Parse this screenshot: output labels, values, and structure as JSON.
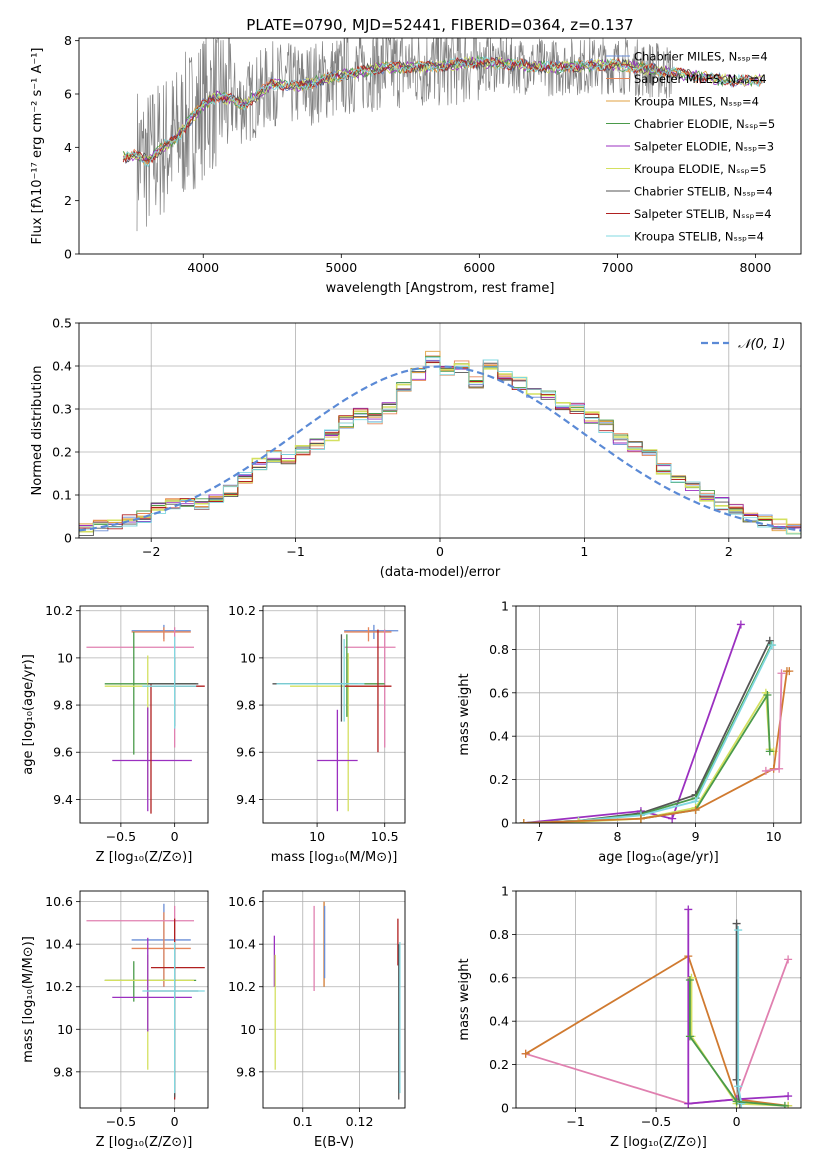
{
  "figure": {
    "title": "PLATE=0790, MJD=52441, FIBERID=0364, z=0.137"
  },
  "colors": {
    "chabrier_miles": "#6a8ed6",
    "salpeter_miles": "#e6865a",
    "kroupa_miles": "#e0a040",
    "chabrier_elodie": "#4a9a4a",
    "salpeter_elodie": "#9b30c0",
    "kroupa_elodie": "#d4e060",
    "chabrier_stelib": "#555555",
    "salpeter_stelib": "#b02020",
    "kroupa_stelib": "#80d8e0",
    "pink": "#e080b0",
    "orange": "#d07a30",
    "normal": "#5b8ad6",
    "grey_spectrum": "#808080"
  },
  "chart_data": [
    {
      "id": "spectrum",
      "type": "line",
      "xlabel": "wavelength [Angstrom, rest frame]",
      "ylabel": "Flux [fλ10⁻¹⁷ erg cm⁻² s⁻¹ A⁻¹]",
      "xlim": [
        3100,
        8330
      ],
      "ylim": [
        0,
        8.1
      ],
      "xticks": [
        4000,
        5000,
        6000,
        7000,
        8000
      ],
      "yticks": [
        0,
        2,
        4,
        6,
        8
      ],
      "grid": false,
      "legend_position": "right",
      "legend": [
        "Chabrier MILES, N_SSP=4",
        "Salpeter MILES, N_SSP=4",
        "Kroupa MILES, N_SSP=4",
        "Chabrier ELODIE, N_SSP=5",
        "Salpeter ELODIE, N_SSP=3",
        "Kroupa ELODIE, N_SSP=5",
        "Chabrier STELIB, N_SSP=4",
        "Salpeter STELIB, N_SSP=4",
        "Kroupa STELIB, N_SSP=4"
      ],
      "model_continuum": {
        "x": [
          3400,
          3500,
          3600,
          3700,
          3800,
          3900,
          4000,
          4100,
          4200,
          4300,
          4500,
          4700,
          5000,
          5300,
          5600,
          6000,
          6500,
          7000,
          7400,
          7800,
          8000
        ],
        "y": [
          3.6,
          3.7,
          3.5,
          4.0,
          4.3,
          5.0,
          5.6,
          5.9,
          5.8,
          5.6,
          6.4,
          6.3,
          6.7,
          7.0,
          7.0,
          7.2,
          7.0,
          7.1,
          6.8,
          6.5,
          6.5
        ]
      }
    },
    {
      "id": "residuals",
      "type": "line",
      "xlabel": "(data-model)/error",
      "ylabel": "Normed distribution",
      "xlim": [
        -2.5,
        2.5
      ],
      "ylim": [
        0,
        0.5
      ],
      "xticks": [
        -2,
        -1,
        0,
        1,
        2
      ],
      "yticks": [
        0.0,
        0.1,
        0.2,
        0.3,
        0.4,
        0.5
      ],
      "grid": true,
      "legend_position": "top-right",
      "legend": [
        "𝒩(0, 1)"
      ],
      "bin_width": 0.1,
      "hist_start": -2.5,
      "hist": [
        0.02,
        0.03,
        0.03,
        0.04,
        0.05,
        0.07,
        0.08,
        0.08,
        0.08,
        0.09,
        0.11,
        0.14,
        0.17,
        0.19,
        0.18,
        0.2,
        0.22,
        0.24,
        0.27,
        0.29,
        0.28,
        0.3,
        0.35,
        0.38,
        0.42,
        0.39,
        0.4,
        0.36,
        0.4,
        0.38,
        0.36,
        0.34,
        0.33,
        0.31,
        0.3,
        0.28,
        0.26,
        0.23,
        0.21,
        0.19,
        0.16,
        0.14,
        0.12,
        0.1,
        0.08,
        0.07,
        0.05,
        0.04,
        0.03,
        0.02
      ]
    },
    {
      "id": "age_vs_Z",
      "type": "scatter",
      "xlabel": "Z [log₁₀(Z/Z⊙)]",
      "ylabel": "age  [log₁₀(age/yr)]",
      "xlim": [
        -0.88,
        0.31
      ],
      "ylim": [
        9.3,
        10.22
      ],
      "xticks": [
        -0.5,
        0.0
      ],
      "yticks": [
        9.4,
        9.6,
        9.8,
        10.0,
        10.2
      ],
      "grid": true,
      "errorbars": [
        {
          "x": -0.1,
          "y": 10.115,
          "xlo": -0.4,
          "xhi": 0.15,
          "ylo": 10.08,
          "yhi": 10.14,
          "c": "chabrier_miles"
        },
        {
          "x": -0.1,
          "y": 10.11,
          "xlo": -0.4,
          "xhi": 0.15,
          "ylo": 10.07,
          "yhi": 10.13,
          "c": "salpeter_miles"
        },
        {
          "x": 0.0,
          "y": 10.045,
          "xlo": -0.82,
          "xhi": 0.18,
          "ylo": 9.62,
          "yhi": 10.13,
          "c": "pink"
        },
        {
          "x": -0.38,
          "y": 9.89,
          "xlo": -0.65,
          "xhi": 0.2,
          "ylo": 9.59,
          "yhi": 10.11,
          "c": "chabrier_elodie"
        },
        {
          "x": -0.25,
          "y": 9.88,
          "xlo": -0.65,
          "xhi": 0.18,
          "ylo": 9.41,
          "yhi": 10.01,
          "c": "kroupa_elodie"
        },
        {
          "x": -0.25,
          "y": 9.565,
          "xlo": -0.58,
          "xhi": 0.16,
          "ylo": 9.35,
          "yhi": 9.79,
          "c": "salpeter_elodie"
        },
        {
          "x": -0.22,
          "y": 9.88,
          "xlo": -0.22,
          "xhi": 0.28,
          "ylo": 9.34,
          "yhi": 9.89,
          "c": "salpeter_stelib"
        },
        {
          "x": 0.0,
          "y": 9.89,
          "xlo": -0.25,
          "xhi": 0.22,
          "ylo": 9.71,
          "yhi": 10.0,
          "c": "chabrier_stelib"
        },
        {
          "x": 0.0,
          "y": 9.88,
          "xlo": -0.3,
          "xhi": 0.2,
          "ylo": 9.7,
          "yhi": 10.09,
          "c": "kroupa_stelib"
        }
      ]
    },
    {
      "id": "age_vs_mass",
      "type": "scatter",
      "xlabel": "mass [log₁₀(M/M⊙)]",
      "ylabel": "",
      "xlim": [
        9.6,
        10.65
      ],
      "ylim": [
        9.3,
        10.22
      ],
      "xticks": [
        10.0,
        10.5
      ],
      "yticks": [
        9.4,
        9.6,
        9.8,
        10.0,
        10.2
      ],
      "grid": true,
      "errorbars": [
        {
          "x": 10.42,
          "y": 10.115,
          "xlo": 10.2,
          "xhi": 10.6,
          "ylo": 10.08,
          "yhi": 10.14,
          "c": "chabrier_miles"
        },
        {
          "x": 10.38,
          "y": 10.11,
          "xlo": 10.2,
          "xhi": 10.55,
          "ylo": 10.07,
          "yhi": 10.13,
          "c": "salpeter_miles"
        },
        {
          "x": 10.5,
          "y": 10.045,
          "xlo": 10.2,
          "xhi": 10.58,
          "ylo": 9.62,
          "yhi": 10.12,
          "c": "pink"
        },
        {
          "x": 10.22,
          "y": 9.89,
          "xlo": 9.7,
          "xhi": 10.5,
          "ylo": 9.75,
          "yhi": 10.1,
          "c": "chabrier_elodie"
        },
        {
          "x": 10.23,
          "y": 9.88,
          "xlo": 9.8,
          "xhi": 10.45,
          "ylo": 9.35,
          "yhi": 10.02,
          "c": "kroupa_elodie"
        },
        {
          "x": 10.15,
          "y": 9.565,
          "xlo": 10.0,
          "xhi": 10.3,
          "ylo": 9.35,
          "yhi": 9.78,
          "c": "salpeter_elodie"
        },
        {
          "x": 10.45,
          "y": 9.88,
          "xlo": 10.2,
          "xhi": 10.55,
          "ylo": 9.6,
          "yhi": 10.12,
          "c": "salpeter_stelib"
        },
        {
          "x": 10.18,
          "y": 9.89,
          "xlo": 9.67,
          "xhi": 10.3,
          "ylo": 9.73,
          "yhi": 10.1,
          "c": "chabrier_stelib"
        },
        {
          "x": 10.2,
          "y": 9.89,
          "xlo": 9.7,
          "xhi": 10.35,
          "ylo": 9.73,
          "yhi": 10.08,
          "c": "kroupa_stelib"
        }
      ]
    },
    {
      "id": "weight_vs_age",
      "type": "line",
      "xlabel": "age  [log₁₀(age/yr)]",
      "ylabel": "mass weight",
      "xlim": [
        6.7,
        10.35
      ],
      "ylim": [
        0,
        1.0
      ],
      "xticks": [
        7,
        8,
        9,
        10
      ],
      "yticks": [
        0.0,
        0.2,
        0.4,
        0.6,
        0.8,
        1.0
      ],
      "grid": true,
      "series": [
        {
          "c": "salpeter_elodie",
          "x": [
            6.8,
            8.3,
            8.7,
            9.58
          ],
          "y": [
            0.0,
            0.055,
            0.02,
            0.915
          ]
        },
        {
          "c": "chabrier_stelib",
          "x": [
            6.8,
            7.5,
            8.3,
            9.0,
            9.95
          ],
          "y": [
            0.0,
            0.01,
            0.045,
            0.13,
            0.84
          ]
        },
        {
          "c": "chabrier_elodie",
          "x": [
            6.8,
            7.5,
            8.3,
            9.0,
            9.97
          ],
          "y": [
            0.0,
            0.01,
            0.04,
            0.115,
            0.82
          ]
        },
        {
          "c": "kroupa_stelib",
          "x": [
            6.8,
            7.5,
            8.3,
            9.0,
            9.98
          ],
          "y": [
            0.0,
            0.01,
            0.035,
            0.1,
            0.82
          ]
        },
        {
          "c": "kroupa_elodie",
          "x": [
            6.8,
            7.5,
            8.3,
            9.0,
            9.9,
            9.95,
            10.0
          ],
          "y": [
            0.0,
            0.005,
            0.02,
            0.07,
            0.6,
            0.34,
            0.33
          ]
        },
        {
          "c": "chabrier_elodie",
          "x": [
            8.3,
            9.0,
            9.92,
            9.95
          ],
          "y": [
            0.02,
            0.06,
            0.59,
            0.33
          ]
        },
        {
          "c": "orange",
          "x": [
            6.8,
            8.3,
            9.0,
            10.0,
            10.17,
            10.2
          ],
          "y": [
            0.0,
            0.02,
            0.06,
            0.25,
            0.7,
            0.7
          ]
        },
        {
          "c": "pink",
          "x": [
            9.9,
            10.07,
            10.1
          ],
          "y": [
            0.24,
            0.25,
            0.69
          ]
        }
      ]
    },
    {
      "id": "mass_vs_Z",
      "type": "scatter",
      "xlabel": "Z [log₁₀(Z/Z⊙)]",
      "ylabel": "mass [log₁₀(M/M⊙)]",
      "xlim": [
        -0.88,
        0.31
      ],
      "ylim": [
        9.63,
        10.65
      ],
      "xticks": [
        -0.5,
        0.0
      ],
      "yticks": [
        9.8,
        10.0,
        10.2,
        10.4,
        10.6
      ],
      "grid": true,
      "errorbars": [
        {
          "x": -0.1,
          "y": 10.42,
          "xlo": -0.4,
          "xhi": 0.15,
          "ylo": 10.2,
          "yhi": 10.59,
          "c": "chabrier_miles"
        },
        {
          "x": -0.1,
          "y": 10.38,
          "xlo": -0.4,
          "xhi": 0.15,
          "ylo": 10.2,
          "yhi": 10.55,
          "c": "salpeter_miles"
        },
        {
          "x": 0.0,
          "y": 10.51,
          "xlo": -0.82,
          "xhi": 0.18,
          "ylo": 10.18,
          "yhi": 10.58,
          "c": "pink"
        },
        {
          "x": -0.38,
          "y": 10.23,
          "xlo": -0.65,
          "xhi": 0.2,
          "ylo": 10.13,
          "yhi": 10.32,
          "c": "chabrier_elodie"
        },
        {
          "x": -0.25,
          "y": 10.23,
          "xlo": -0.65,
          "xhi": 0.18,
          "ylo": 9.81,
          "yhi": 10.35,
          "c": "kroupa_elodie"
        },
        {
          "x": -0.25,
          "y": 10.15,
          "xlo": -0.58,
          "xhi": 0.16,
          "ylo": 9.99,
          "yhi": 10.43,
          "c": "salpeter_elodie"
        },
        {
          "x": 0.0,
          "y": 10.29,
          "xlo": -0.22,
          "xhi": 0.28,
          "ylo": 9.67,
          "yhi": 10.52,
          "c": "salpeter_stelib"
        },
        {
          "x": 0.0,
          "y": 10.18,
          "xlo": -0.25,
          "xhi": 0.22,
          "ylo": 9.68,
          "yhi": 10.4,
          "c": "chabrier_stelib"
        },
        {
          "x": 0.0,
          "y": 10.18,
          "xlo": -0.3,
          "xhi": 0.28,
          "ylo": 9.7,
          "yhi": 10.41,
          "c": "kroupa_stelib"
        }
      ]
    },
    {
      "id": "mass_vs_ebv",
      "type": "scatter",
      "xlabel": "E(B-V)",
      "ylabel": "",
      "xlim": [
        0.086,
        0.136
      ],
      "ylim": [
        9.63,
        10.65
      ],
      "xticks": [
        0.1,
        0.12
      ],
      "yticks": [
        9.8,
        10.0,
        10.2,
        10.4,
        10.6
      ],
      "grid": true,
      "vbars": [
        {
          "x": 0.09,
          "ylo": 10.2,
          "yhi": 10.44,
          "c": "salpeter_elodie"
        },
        {
          "x": 0.0903,
          "ylo": 9.81,
          "yhi": 10.35,
          "c": "kroupa_elodie"
        },
        {
          "x": 0.104,
          "ylo": 10.18,
          "yhi": 10.58,
          "c": "pink"
        },
        {
          "x": 0.1075,
          "ylo": 10.2,
          "yhi": 10.6,
          "c": "orange"
        },
        {
          "x": 0.1077,
          "ylo": 10.24,
          "yhi": 10.58,
          "c": "chabrier_miles"
        },
        {
          "x": 0.1335,
          "ylo": 10.3,
          "yhi": 10.52,
          "c": "salpeter_stelib"
        },
        {
          "x": 0.1338,
          "ylo": 9.67,
          "yhi": 10.4,
          "c": "chabrier_stelib"
        },
        {
          "x": 0.1342,
          "ylo": 9.7,
          "yhi": 10.41,
          "c": "kroupa_stelib"
        }
      ]
    },
    {
      "id": "weight_vs_Z",
      "type": "line",
      "xlabel": "Z [log₁₀(Z/Z⊙)]",
      "ylabel": "mass weight",
      "xlim": [
        -1.37,
        0.4
      ],
      "ylim": [
        0,
        1.0
      ],
      "xticks": [
        -1.0,
        -0.5,
        0.0
      ],
      "yticks": [
        0.0,
        0.2,
        0.4,
        0.6,
        0.8,
        1.0
      ],
      "grid": true,
      "series": [
        {
          "c": "pink",
          "x": [
            -1.31,
            -0.3,
            0.0,
            0.32
          ],
          "y": [
            0.25,
            0.02,
            0.04,
            0.685
          ]
        },
        {
          "c": "orange",
          "x": [
            -1.31,
            -0.3,
            0.0,
            0.32
          ],
          "y": [
            0.25,
            0.7,
            0.04,
            0.01
          ]
        },
        {
          "c": "salpeter_elodie",
          "x": [
            -0.3,
            -0.3,
            0.0,
            0.32
          ],
          "y": [
            0.915,
            0.02,
            0.04,
            0.055
          ]
        },
        {
          "c": "kroupa_elodie",
          "x": [
            -0.28,
            -0.28,
            0.0,
            0.32
          ],
          "y": [
            0.6,
            0.33,
            0.02,
            0.01
          ]
        },
        {
          "c": "chabrier_stelib",
          "x": [
            0.0,
            0.0,
            0.02
          ],
          "y": [
            0.85,
            0.13,
            0.02
          ]
        },
        {
          "c": "kroupa_stelib",
          "x": [
            0.01,
            0.01,
            0.03
          ],
          "y": [
            0.82,
            0.1,
            0.02
          ]
        },
        {
          "c": "chabrier_elodie",
          "x": [
            -0.29,
            -0.29,
            0.0,
            0.3
          ],
          "y": [
            0.59,
            0.33,
            0.03,
            0.01
          ]
        }
      ]
    }
  ]
}
